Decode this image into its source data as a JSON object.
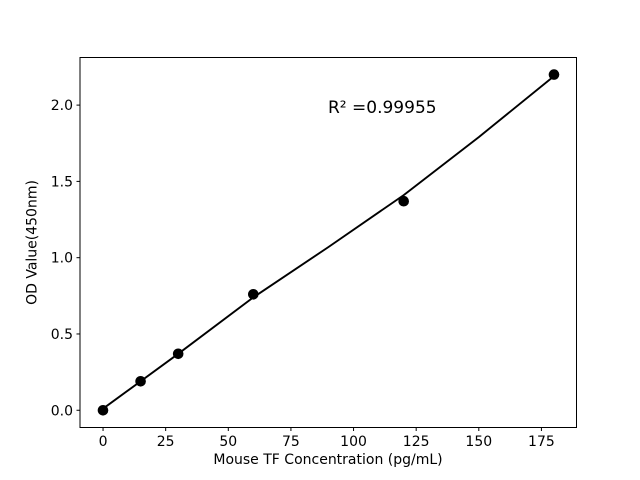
{
  "chart_data": {
    "type": "scatter",
    "title": "",
    "xlabel": "Mouse TF Concentration (pg/mL)",
    "ylabel": "OD Value(450nm)",
    "annotation": {
      "text": "R² =0.99955",
      "r_squared": 0.99955
    },
    "series": [
      {
        "name": "standard-points",
        "kind": "scatter",
        "x": [
          0,
          15,
          30,
          60,
          120,
          180
        ],
        "y": [
          0.0,
          0.19,
          0.37,
          0.76,
          1.37,
          2.2
        ]
      },
      {
        "name": "fit-line",
        "kind": "line",
        "x": [
          0,
          15,
          30,
          60,
          90,
          120,
          150,
          180
        ],
        "y": [
          0.01,
          0.19,
          0.37,
          0.74,
          1.07,
          1.41,
          1.79,
          2.19
        ]
      }
    ],
    "xticks": {
      "values": [
        0,
        25,
        50,
        75,
        100,
        125,
        150,
        175
      ],
      "labels": [
        "0",
        "25",
        "50",
        "75",
        "100",
        "125",
        "150",
        "175"
      ]
    },
    "yticks": {
      "values": [
        0.0,
        0.5,
        1.0,
        1.5,
        2.0
      ],
      "labels": [
        "0.0",
        "0.5",
        "1.0",
        "1.5",
        "2.0"
      ]
    },
    "xlim": [
      -9.2,
      189.0
    ],
    "ylim": [
      -0.113,
      2.312
    ],
    "grid": false,
    "legend": "none",
    "colors": {
      "marker": "#000000",
      "line": "#000000",
      "text": "#000000",
      "frame": "#000000",
      "background": "#ffffff"
    }
  }
}
